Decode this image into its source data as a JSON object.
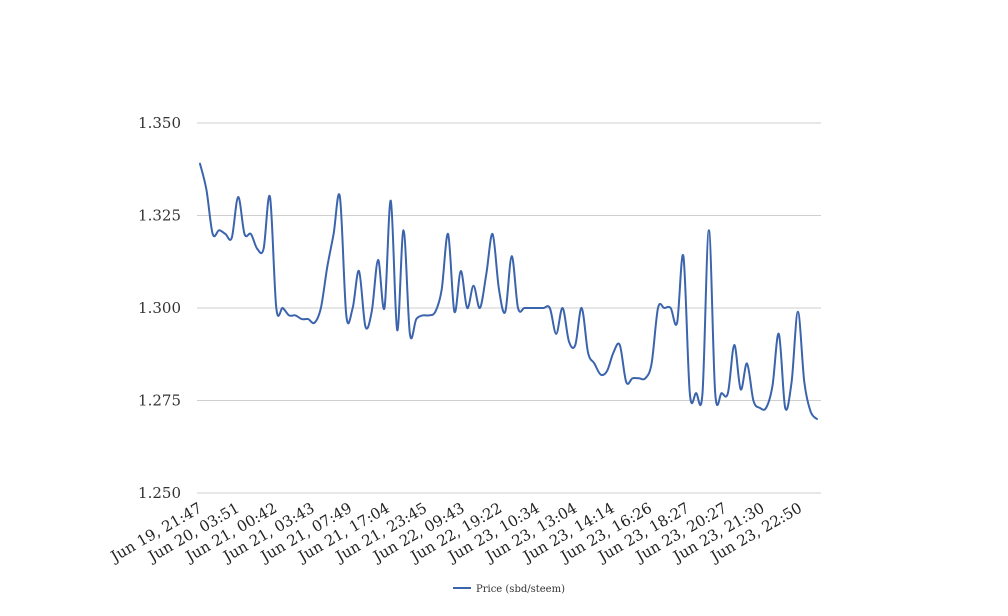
{
  "chart_data": {
    "type": "line",
    "title": "",
    "xlabel": "",
    "ylabel": "",
    "ylim": [
      1.25,
      1.35
    ],
    "yticks": [
      "1.350",
      "1.325",
      "1.300",
      "1.275",
      "1.250"
    ],
    "ytick_values": [
      1.35,
      1.325,
      1.3,
      1.275,
      1.25
    ],
    "xtick_labels": [
      "Jun 19, 21:47",
      "Jun 20, 03:51",
      "Jun 21, 00:42",
      "Jun 21, 03:43",
      "Jun 21, 07:49",
      "Jun 21, 17:04",
      "Jun 21, 23:45",
      "Jun 22, 09:43",
      "Jun 22, 19:22",
      "Jun 23, 10:34",
      "Jun 23, 13:04",
      "Jun 23, 14:14",
      "Jun 23, 16:26",
      "Jun 23, 18:27",
      "Jun 23, 20:27",
      "Jun 23, 21:30",
      "Jun 23, 22:50"
    ],
    "grid": true,
    "legend_position": "bottom",
    "series": [
      {
        "name": "Price (sbd/steem)",
        "color": "#3b64ad",
        "values": [
          1.339,
          1.332,
          1.32,
          1.321,
          1.32,
          1.319,
          1.33,
          1.32,
          1.32,
          1.316,
          1.316,
          1.33,
          1.3,
          1.3,
          1.298,
          1.298,
          1.297,
          1.297,
          1.296,
          1.3,
          1.311,
          1.32,
          1.33,
          1.298,
          1.3,
          1.31,
          1.295,
          1.299,
          1.313,
          1.3,
          1.329,
          1.294,
          1.321,
          1.293,
          1.297,
          1.298,
          1.298,
          1.299,
          1.305,
          1.32,
          1.299,
          1.31,
          1.3,
          1.306,
          1.3,
          1.309,
          1.32,
          1.305,
          1.299,
          1.314,
          1.3,
          1.3,
          1.3,
          1.3,
          1.3,
          1.3,
          1.293,
          1.3,
          1.291,
          1.29,
          1.3,
          1.288,
          1.285,
          1.282,
          1.283,
          1.288,
          1.29,
          1.28,
          1.281,
          1.281,
          1.281,
          1.285,
          1.3,
          1.3,
          1.3,
          1.296,
          1.314,
          1.277,
          1.277,
          1.277,
          1.321,
          1.277,
          1.277,
          1.277,
          1.29,
          1.278,
          1.285,
          1.275,
          1.273,
          1.273,
          1.279,
          1.293,
          1.273,
          1.28,
          1.299,
          1.28,
          1.272,
          1.27
        ]
      }
    ]
  }
}
